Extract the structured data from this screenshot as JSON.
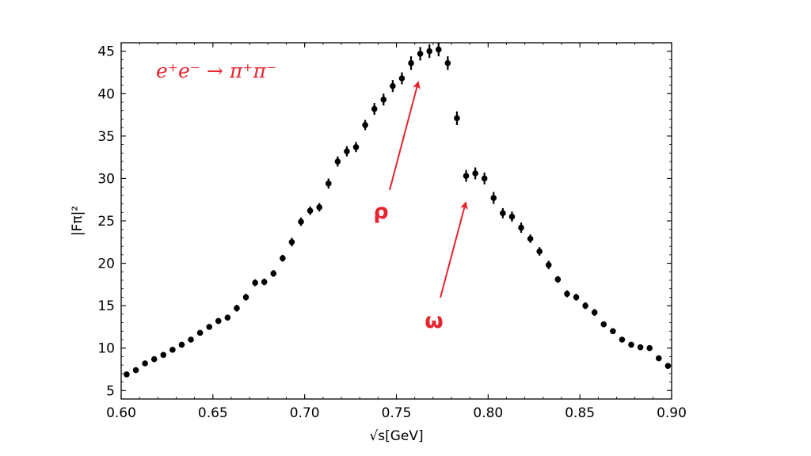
{
  "chart_data": {
    "type": "scatter",
    "xlabel": "√s[GeV]",
    "ylabel": "|Fπ|²",
    "xlim": [
      0.6,
      0.9
    ],
    "ylim": [
      4.0,
      46.0
    ],
    "x_ticks": [
      "0.60",
      "0.65",
      "0.70",
      "0.75",
      "0.80",
      "0.85",
      "0.90"
    ],
    "y_ticks": [
      "5",
      "10",
      "15",
      "20",
      "25",
      "30",
      "35",
      "40",
      "45"
    ],
    "grid": false,
    "annotations": {
      "reaction": "e⁺e⁻ → π⁺π⁻",
      "rho": "ρ",
      "omega": "ω"
    },
    "marker_color": "#000000",
    "annotation_color": "#e8232e",
    "series": [
      {
        "x": [
          0.603,
          0.608,
          0.613,
          0.618,
          0.623,
          0.628,
          0.633,
          0.638,
          0.643,
          0.648,
          0.653,
          0.658,
          0.663,
          0.668,
          0.673,
          0.678,
          0.683,
          0.688,
          0.693,
          0.698,
          0.703,
          0.708,
          0.713,
          0.718,
          0.723,
          0.728,
          0.733,
          0.738,
          0.743,
          0.748,
          0.753,
          0.758,
          0.763,
          0.768,
          0.773,
          0.778,
          0.783,
          0.788,
          0.793,
          0.798,
          0.803,
          0.808,
          0.813,
          0.818,
          0.823,
          0.828,
          0.833,
          0.838,
          0.843,
          0.848,
          0.853,
          0.858,
          0.863,
          0.868,
          0.873,
          0.878,
          0.883,
          0.888,
          0.893,
          0.898
        ],
        "y": [
          6.9,
          7.4,
          8.2,
          8.7,
          9.2,
          9.8,
          10.4,
          11.0,
          11.8,
          12.5,
          13.2,
          13.6,
          14.7,
          16.0,
          17.7,
          17.8,
          18.8,
          20.6,
          22.5,
          24.9,
          26.2,
          26.6,
          29.4,
          32.0,
          33.2,
          33.7,
          36.3,
          38.2,
          39.3,
          40.9,
          41.8,
          43.6,
          44.7,
          45.0,
          45.2,
          43.6,
          37.1,
          30.3,
          30.6,
          30.0,
          27.7,
          25.9,
          25.5,
          24.2,
          22.9,
          21.4,
          19.8,
          18.1,
          16.4,
          16.0,
          15.0,
          14.2,
          12.8,
          12.0,
          11.0,
          10.4,
          10.1,
          10.0,
          8.8,
          7.9
        ],
        "yerr": [
          0.3,
          0.3,
          0.3,
          0.3,
          0.3,
          0.3,
          0.3,
          0.3,
          0.3,
          0.3,
          0.3,
          0.3,
          0.4,
          0.4,
          0.4,
          0.4,
          0.4,
          0.4,
          0.5,
          0.5,
          0.5,
          0.5,
          0.6,
          0.6,
          0.6,
          0.6,
          0.6,
          0.7,
          0.7,
          0.7,
          0.7,
          0.8,
          0.8,
          0.8,
          0.8,
          0.8,
          0.8,
          0.7,
          0.7,
          0.7,
          0.7,
          0.6,
          0.6,
          0.6,
          0.5,
          0.5,
          0.5,
          0.4,
          0.4,
          0.4,
          0.4,
          0.4,
          0.3,
          0.3,
          0.3,
          0.3,
          0.3,
          0.3,
          0.3,
          0.3
        ]
      }
    ]
  }
}
